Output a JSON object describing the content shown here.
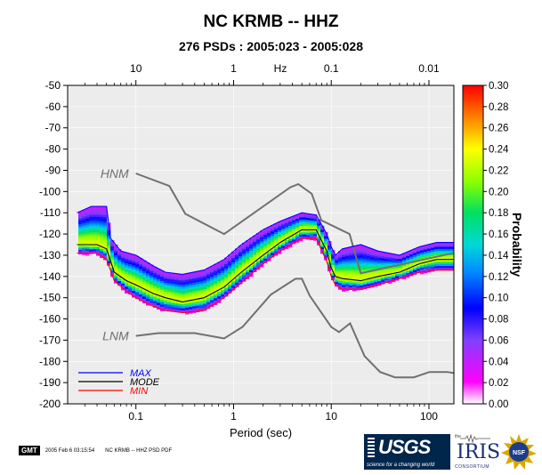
{
  "title": "NC KRMB -- HHZ",
  "subtitle": "276 PSDs : 2005:023 - 2005:028",
  "footer": {
    "gmt_label": "GMT",
    "timestamp": "2005 Feb  6 03:15:54",
    "caption": "NC KRMB -- HHZ PSD PDF"
  },
  "logos": {
    "usgs_wordmark": "USGS",
    "usgs_tagline": "science for a changing world",
    "iris_prefix": "the",
    "iris_wordmark": "IRIS",
    "iris_tagline": "CONSORTIUM",
    "nsf_wordmark": "NSF"
  },
  "colors": {
    "max": "#0000ff",
    "mode": "#000000",
    "min": "#ff0000",
    "noise_model": "#707070"
  },
  "chart_data": {
    "type": "heatmap",
    "xlabel": "Period (sec)",
    "x_scale": "log",
    "xlim": [
      0.02,
      180
    ],
    "x_ticks": [
      0.1,
      1,
      10,
      100
    ],
    "x_tick_labels": [
      "0.1",
      "1",
      "10",
      "100"
    ],
    "top_axis_label": "Hz",
    "top_ticks": [
      10,
      1,
      0.1,
      0.01
    ],
    "top_tick_labels": [
      "10",
      "1",
      "0.1",
      "0.01"
    ],
    "ylim": [
      -200,
      -50
    ],
    "y_ticks": [
      -50,
      -60,
      -70,
      -80,
      -90,
      -100,
      -110,
      -120,
      -130,
      -140,
      -150,
      -160,
      -170,
      -180,
      -190,
      -200
    ],
    "colorbar": {
      "label": "Probability",
      "min": 0.0,
      "max": 0.3,
      "ticks": [
        0.0,
        0.02,
        0.04,
        0.06,
        0.08,
        0.1,
        0.12,
        0.14,
        0.16,
        0.18,
        0.2,
        0.22,
        0.24,
        0.26,
        0.28,
        0.3
      ],
      "tick_labels": [
        "0.00",
        "0.02",
        "0.04",
        "0.06",
        "0.08",
        "0.10",
        "0.12",
        "0.14",
        "0.16",
        "0.18",
        "0.20",
        "0.22",
        "0.24",
        "0.26",
        "0.28",
        "0.30"
      ]
    },
    "noise_models": [
      {
        "label": "HNM",
        "x": [
          0.1,
          0.22,
          0.32,
          0.8,
          3.8,
          4.6,
          6.3,
          7.9,
          15.4,
          20,
          354
        ],
        "y": [
          -91.5,
          -97.4,
          -110.5,
          -120,
          -98,
          -96.5,
          -101,
          -113.5,
          -120,
          -138.5,
          -126
        ]
      },
      {
        "label": "LNM",
        "x": [
          0.1,
          0.17,
          0.4,
          0.8,
          1.24,
          2.4,
          4.3,
          5,
          6,
          10,
          12,
          15.6,
          21.9,
          31.6,
          45,
          70,
          101,
          154,
          328
        ],
        "y": [
          -168,
          -166.7,
          -166.7,
          -169.2,
          -163.7,
          -148.6,
          -141.1,
          -141.1,
          -149,
          -163.8,
          -166.2,
          -162.1,
          -177.5,
          -185,
          -187.5,
          -187.5,
          -185,
          -185,
          -187.5
        ]
      }
    ],
    "series": [
      {
        "name": "MAX",
        "x": [
          0.025,
          0.035,
          0.05,
          0.055,
          0.07,
          0.1,
          0.15,
          0.2,
          0.3,
          0.5,
          0.8,
          1.2,
          2,
          3,
          5,
          7,
          9,
          10,
          11,
          13,
          20,
          30,
          50,
          80,
          120,
          180
        ],
        "y": [
          -110,
          -107,
          -107,
          -122,
          -128,
          -130,
          -135,
          -138,
          -139,
          -137,
          -132,
          -125,
          -118,
          -114,
          -110,
          -111,
          -120,
          -126,
          -130,
          -127,
          -125,
          -128,
          -130,
          -126,
          -124,
          -124
        ]
      },
      {
        "name": "MODE",
        "x": [
          0.025,
          0.04,
          0.05,
          0.06,
          0.08,
          0.1,
          0.15,
          0.2,
          0.3,
          0.5,
          0.8,
          1.2,
          2,
          3,
          5,
          7,
          9,
          10,
          11,
          13,
          20,
          30,
          50,
          80,
          120,
          180
        ],
        "y": [
          -125,
          -125,
          -127,
          -138,
          -142,
          -144,
          -148,
          -150,
          -152,
          -150,
          -145,
          -138,
          -130,
          -124,
          -118,
          -118,
          -128,
          -136,
          -140,
          -141,
          -142,
          -140,
          -138,
          -134,
          -132,
          -132
        ]
      },
      {
        "name": "MIN",
        "x": [
          0.025,
          0.04,
          0.05,
          0.06,
          0.08,
          0.1,
          0.15,
          0.2,
          0.3,
          0.5,
          0.8,
          1.2,
          2,
          3,
          5,
          7,
          9,
          10,
          11,
          13,
          20,
          30,
          50,
          80,
          120,
          180
        ],
        "y": [
          -129,
          -129,
          -132,
          -142,
          -147,
          -150,
          -154,
          -156,
          -157,
          -156,
          -150,
          -143,
          -134,
          -128,
          -122,
          -122,
          -133,
          -140,
          -144,
          -146,
          -146,
          -144,
          -141,
          -138,
          -137,
          -137
        ]
      }
    ],
    "legend": {
      "placement": "bottom-left",
      "entries": [
        "MAX",
        "MODE",
        "MIN"
      ]
    },
    "grid": true
  }
}
